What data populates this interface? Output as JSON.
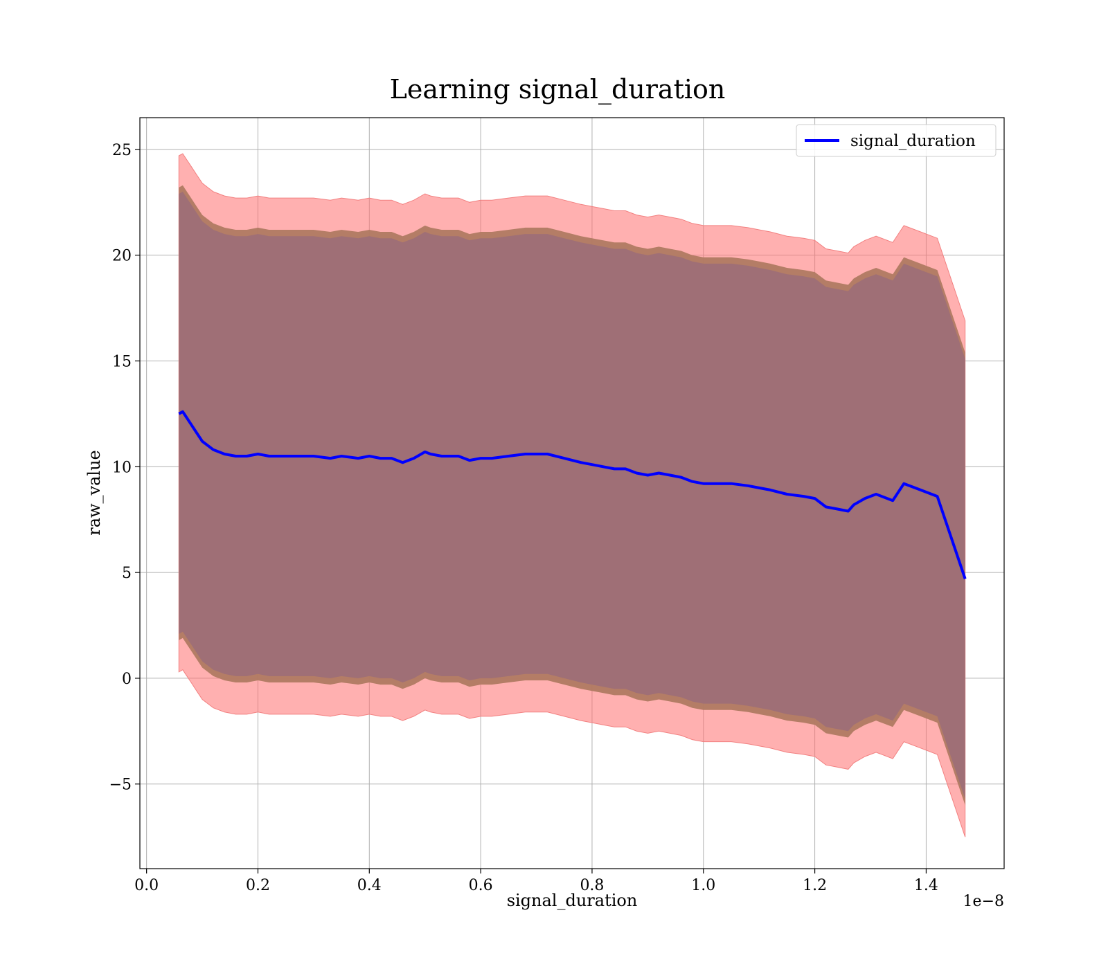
{
  "chart_data": {
    "type": "line",
    "title": "Learning signal_duration",
    "xlabel": "signal_duration",
    "ylabel": "raw_value",
    "x_scale_label": "1e−8",
    "xlim": [
      -0.012,
      1.54
    ],
    "ylim": [
      -9.0,
      26.5
    ],
    "x_ticks": [
      0.0,
      0.2,
      0.4,
      0.6,
      0.8,
      1.0,
      1.2,
      1.4
    ],
    "x_tick_labels": [
      "0.0",
      "0.2",
      "0.4",
      "0.6",
      "0.8",
      "1.0",
      "1.2",
      "1.4"
    ],
    "y_ticks": [
      -5,
      0,
      5,
      10,
      15,
      20,
      25
    ],
    "y_tick_labels": [
      "−5",
      "0",
      "5",
      "10",
      "15",
      "20",
      "25"
    ],
    "grid": true,
    "legend_position": "top-right",
    "series": [
      {
        "name": "signal_duration",
        "color": "#0000ff"
      }
    ],
    "x": [
      0.058,
      0.065,
      0.07,
      0.08,
      0.09,
      0.1,
      0.11,
      0.12,
      0.14,
      0.16,
      0.18,
      0.2,
      0.22,
      0.25,
      0.28,
      0.3,
      0.33,
      0.35,
      0.38,
      0.4,
      0.42,
      0.44,
      0.46,
      0.48,
      0.5,
      0.51,
      0.53,
      0.56,
      0.58,
      0.6,
      0.62,
      0.65,
      0.68,
      0.7,
      0.72,
      0.75,
      0.78,
      0.8,
      0.82,
      0.84,
      0.86,
      0.88,
      0.9,
      0.92,
      0.94,
      0.96,
      0.98,
      1.0,
      1.02,
      1.05,
      1.08,
      1.1,
      1.12,
      1.15,
      1.18,
      1.2,
      1.22,
      1.24,
      1.26,
      1.27,
      1.29,
      1.31,
      1.34,
      1.36,
      1.39,
      1.42,
      1.47
    ],
    "mean": [
      12.5,
      12.6,
      12.4,
      12.0,
      11.6,
      11.2,
      11.0,
      10.8,
      10.6,
      10.5,
      10.5,
      10.6,
      10.5,
      10.5,
      10.5,
      10.5,
      10.4,
      10.5,
      10.4,
      10.5,
      10.4,
      10.4,
      10.2,
      10.4,
      10.7,
      10.6,
      10.5,
      10.5,
      10.3,
      10.4,
      10.4,
      10.5,
      10.6,
      10.6,
      10.6,
      10.4,
      10.2,
      10.1,
      10.0,
      9.9,
      9.9,
      9.7,
      9.6,
      9.7,
      9.6,
      9.5,
      9.3,
      9.2,
      9.2,
      9.2,
      9.1,
      9.0,
      8.9,
      8.7,
      8.6,
      8.5,
      8.1,
      8.0,
      7.9,
      8.2,
      8.5,
      8.7,
      8.4,
      9.2,
      8.9,
      8.6,
      4.7
    ],
    "band_half_width": {
      "inner": 10.4,
      "middle": 10.7,
      "outer": 12.2
    }
  }
}
